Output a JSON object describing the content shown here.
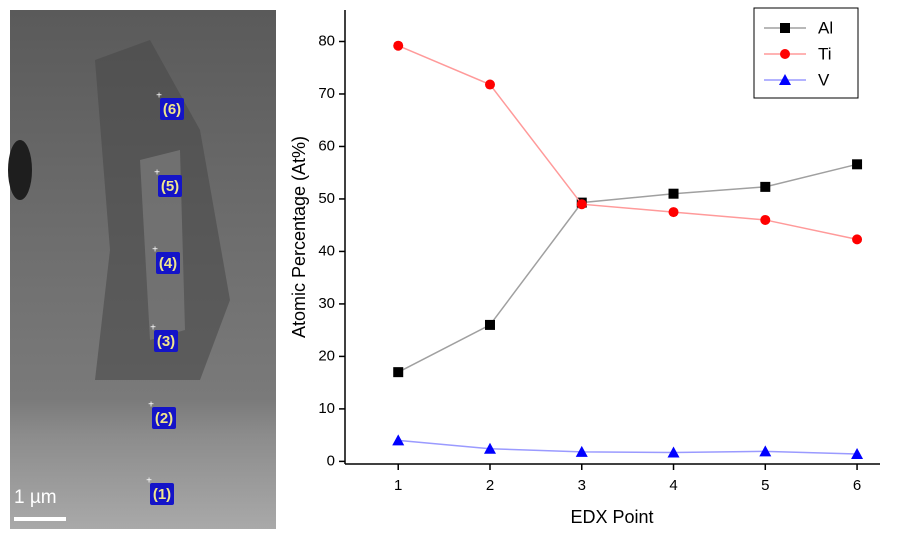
{
  "image": {
    "markers": [
      "(1)",
      "(2)",
      "(3)",
      "(4)",
      "(5)",
      "(6)"
    ],
    "scale_bar": "1 µm"
  },
  "chart_data": {
    "type": "line",
    "x_label": "EDX Point",
    "y_label": "Atomic Percentage (At%)",
    "x": [
      1,
      2,
      3,
      4,
      5,
      6
    ],
    "series": [
      {
        "name": "Al",
        "color": "#000000",
        "line_color": "#a0a0a0",
        "marker": "square",
        "values": [
          17,
          26,
          49.3,
          51,
          52.3,
          56.6
        ]
      },
      {
        "name": "Ti",
        "color": "#ff0000",
        "line_color": "#ff9a9a",
        "marker": "circle",
        "values": [
          79.2,
          71.8,
          49,
          47.5,
          46,
          42.3
        ]
      },
      {
        "name": "V",
        "color": "#0000ff",
        "line_color": "#9a9aff",
        "marker": "triangle",
        "values": [
          4,
          2.4,
          1.8,
          1.7,
          1.9,
          1.4
        ]
      }
    ],
    "xlim": [
      0.42,
      6.25
    ],
    "ylim": [
      -0.5,
      86
    ],
    "xticks": [
      1,
      2,
      3,
      4,
      5,
      6
    ],
    "yticks": [
      0,
      10,
      20,
      30,
      40,
      50,
      60,
      70,
      80
    ],
    "legend": "top-right",
    "grid": false
  }
}
